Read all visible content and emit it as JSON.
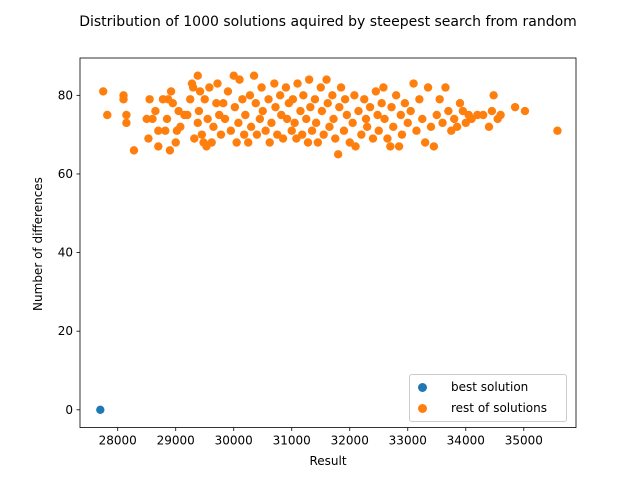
{
  "chart_data": {
    "type": "scatter",
    "title": "Distribution of 1000 solutions aquired by steepest search from random",
    "xlabel": "Result",
    "ylabel": "Number of differences",
    "xlim": [
      27350,
      35900
    ],
    "ylim": [
      -4.5,
      89.5
    ],
    "xticks": [
      28000,
      29000,
      30000,
      31000,
      32000,
      33000,
      34000,
      35000
    ],
    "yticks": [
      0,
      20,
      40,
      60,
      80
    ],
    "legend_position": "lower-right",
    "grid": false,
    "series": [
      {
        "name": "best solution",
        "color": "#1f77b4",
        "points": [
          [
            27700,
            0
          ]
        ]
      },
      {
        "name": "rest of solutions",
        "color": "#ff7f0e",
        "points": [
          [
            27750,
            81
          ],
          [
            27820,
            75
          ],
          [
            28100,
            80
          ],
          [
            28100,
            79
          ],
          [
            28150,
            75
          ],
          [
            28150,
            73
          ],
          [
            28280,
            66
          ],
          [
            28500,
            74
          ],
          [
            28530,
            69
          ],
          [
            28550,
            79
          ],
          [
            28600,
            74
          ],
          [
            28650,
            76
          ],
          [
            28700,
            67
          ],
          [
            28700,
            71
          ],
          [
            28780,
            79
          ],
          [
            28820,
            71
          ],
          [
            28850,
            74
          ],
          [
            28870,
            79
          ],
          [
            28900,
            66
          ],
          [
            28920,
            81
          ],
          [
            28950,
            78
          ],
          [
            29000,
            68
          ],
          [
            29020,
            71
          ],
          [
            29050,
            76
          ],
          [
            29080,
            72
          ],
          [
            29150,
            75
          ],
          [
            29200,
            75
          ],
          [
            29250,
            79
          ],
          [
            29280,
            83
          ],
          [
            29300,
            82
          ],
          [
            29320,
            69
          ],
          [
            29380,
            85
          ],
          [
            29380,
            73
          ],
          [
            29400,
            76
          ],
          [
            29420,
            81
          ],
          [
            29450,
            70
          ],
          [
            29480,
            68
          ],
          [
            29500,
            79
          ],
          [
            29530,
            67
          ],
          [
            29550,
            74
          ],
          [
            29580,
            82
          ],
          [
            29620,
            68
          ],
          [
            29650,
            72
          ],
          [
            29700,
            78
          ],
          [
            29720,
            83
          ],
          [
            29750,
            75
          ],
          [
            29780,
            70
          ],
          [
            29820,
            78
          ],
          [
            29850,
            74
          ],
          [
            29900,
            81
          ],
          [
            29950,
            71
          ],
          [
            30000,
            85
          ],
          [
            30020,
            77
          ],
          [
            30050,
            68
          ],
          [
            30080,
            73
          ],
          [
            30100,
            84
          ],
          [
            30150,
            79
          ],
          [
            30180,
            70
          ],
          [
            30200,
            75
          ],
          [
            30250,
            68
          ],
          [
            30280,
            80
          ],
          [
            30300,
            72
          ],
          [
            30350,
            85
          ],
          [
            30380,
            78
          ],
          [
            30400,
            70
          ],
          [
            30450,
            74
          ],
          [
            30480,
            82
          ],
          [
            30500,
            76
          ],
          [
            30550,
            71
          ],
          [
            30600,
            79
          ],
          [
            30620,
            68
          ],
          [
            30650,
            73
          ],
          [
            30700,
            83
          ],
          [
            30720,
            77
          ],
          [
            30750,
            70
          ],
          [
            30800,
            80
          ],
          [
            30820,
            75
          ],
          [
            30850,
            69
          ],
          [
            30900,
            82
          ],
          [
            30920,
            74
          ],
          [
            30950,
            78
          ],
          [
            31000,
            71
          ],
          [
            31020,
            79
          ],
          [
            31050,
            73
          ],
          [
            31080,
            69
          ],
          [
            31100,
            83
          ],
          [
            31150,
            76
          ],
          [
            31180,
            70
          ],
          [
            31200,
            80
          ],
          [
            31250,
            74
          ],
          [
            31280,
            68
          ],
          [
            31300,
            84
          ],
          [
            31320,
            77
          ],
          [
            31350,
            71
          ],
          [
            31400,
            79
          ],
          [
            31420,
            73
          ],
          [
            31450,
            68
          ],
          [
            31500,
            82
          ],
          [
            31520,
            76
          ],
          [
            31550,
            70
          ],
          [
            31600,
            84
          ],
          [
            31620,
            78
          ],
          [
            31650,
            72
          ],
          [
            31700,
            80
          ],
          [
            31720,
            74
          ],
          [
            31750,
            69
          ],
          [
            31800,
            65
          ],
          [
            31820,
            77
          ],
          [
            31850,
            82
          ],
          [
            31900,
            71
          ],
          [
            31920,
            79
          ],
          [
            31950,
            75
          ],
          [
            32000,
            68
          ],
          [
            32050,
            73
          ],
          [
            32080,
            80
          ],
          [
            32100,
            67
          ],
          [
            32150,
            76
          ],
          [
            32200,
            70
          ],
          [
            32250,
            79
          ],
          [
            32280,
            74
          ],
          [
            32300,
            72
          ],
          [
            32350,
            77
          ],
          [
            32400,
            69
          ],
          [
            32450,
            81
          ],
          [
            32480,
            75
          ],
          [
            32500,
            71
          ],
          [
            32550,
            78
          ],
          [
            32580,
            82
          ],
          [
            32600,
            74
          ],
          [
            32650,
            69
          ],
          [
            32700,
            67
          ],
          [
            32720,
            77
          ],
          [
            32750,
            72
          ],
          [
            32800,
            80
          ],
          [
            32850,
            67
          ],
          [
            32880,
            75
          ],
          [
            32900,
            70
          ],
          [
            32950,
            78
          ],
          [
            33000,
            73
          ],
          [
            33050,
            76
          ],
          [
            33100,
            83
          ],
          [
            33150,
            71
          ],
          [
            33200,
            79
          ],
          [
            33250,
            74
          ],
          [
            33300,
            68
          ],
          [
            33350,
            82
          ],
          [
            33400,
            72
          ],
          [
            33450,
            67
          ],
          [
            33500,
            75
          ],
          [
            33550,
            79
          ],
          [
            33600,
            73
          ],
          [
            33650,
            82
          ],
          [
            33700,
            76
          ],
          [
            33750,
            71
          ],
          [
            33800,
            74
          ],
          [
            33850,
            72
          ],
          [
            33900,
            78
          ],
          [
            33950,
            76
          ],
          [
            34000,
            73
          ],
          [
            34050,
            75
          ],
          [
            34100,
            74
          ],
          [
            34200,
            75
          ],
          [
            34300,
            75
          ],
          [
            34400,
            72
          ],
          [
            34450,
            76
          ],
          [
            34480,
            80
          ],
          [
            34550,
            74
          ],
          [
            34600,
            75
          ],
          [
            34850,
            77
          ],
          [
            35020,
            76
          ],
          [
            35580,
            71
          ]
        ]
      }
    ]
  },
  "legend": {
    "items": [
      "best solution",
      "rest of solutions"
    ]
  }
}
